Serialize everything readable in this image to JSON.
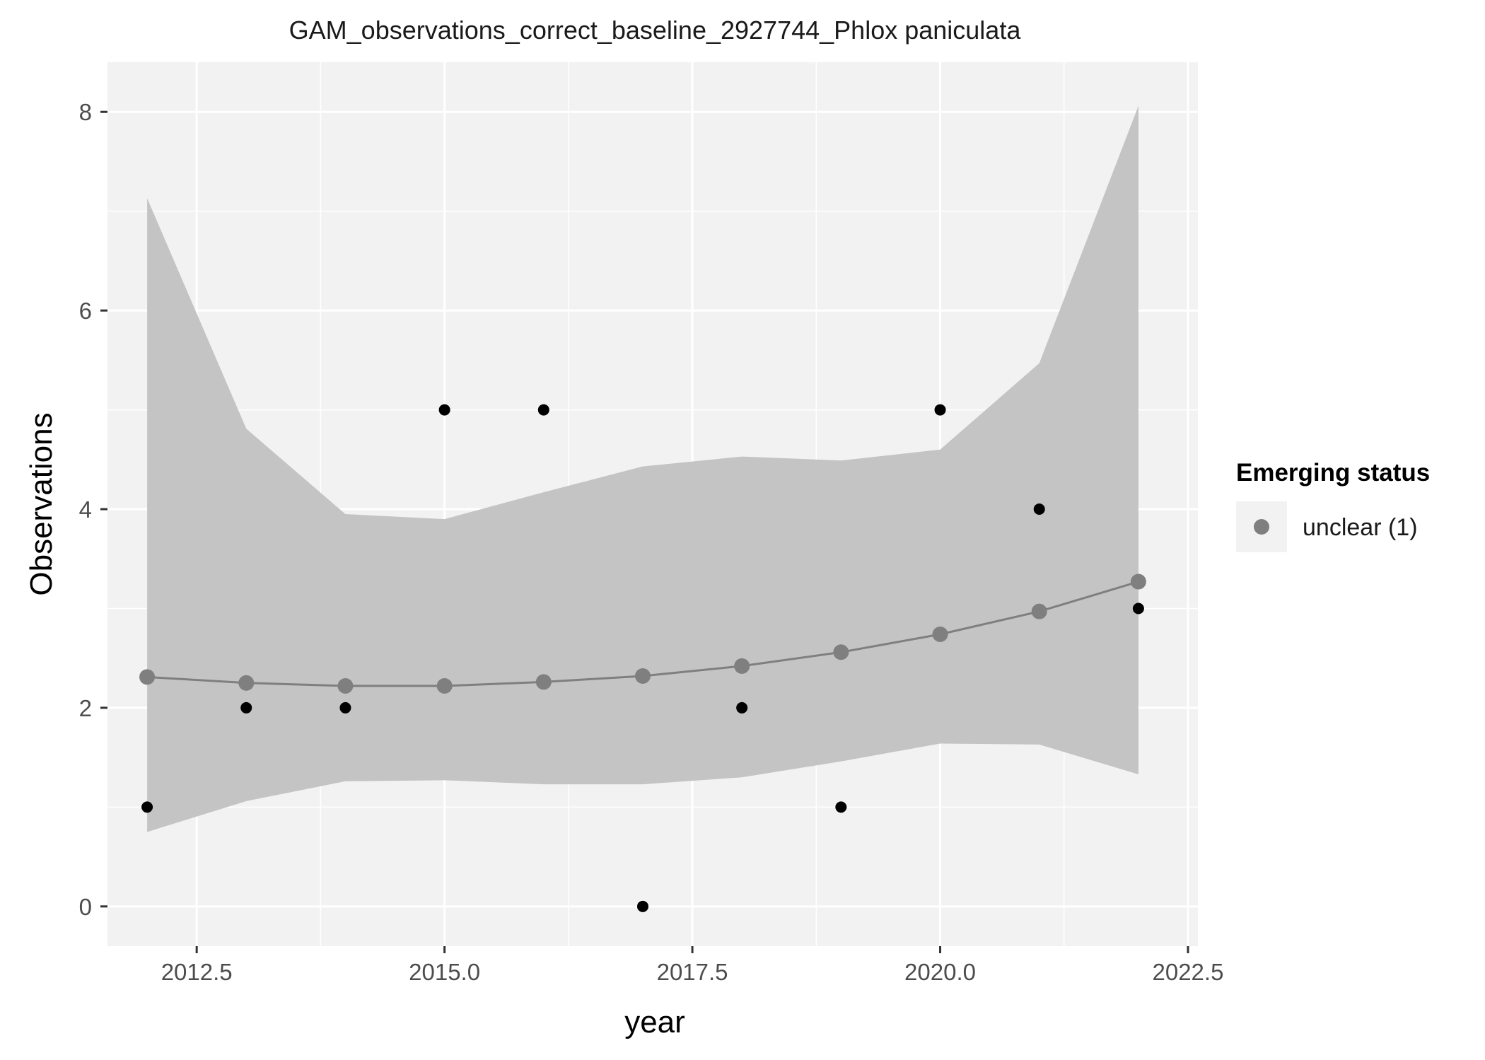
{
  "chart_data": {
    "type": "scatter",
    "title": "GAM_observations_correct_baseline_2927744_Phlox paniculata",
    "xlabel": "year",
    "ylabel": "Observations",
    "xlim": [
      2011.6,
      2022.6
    ],
    "ylim": [
      -0.4,
      8.5
    ],
    "x_ticks": [
      2012.5,
      2015.0,
      2017.5,
      2020.0,
      2022.5
    ],
    "x_tick_labels": [
      "2012.5",
      "2015.0",
      "2017.5",
      "2020.0",
      "2022.5"
    ],
    "y_ticks": [
      0,
      2,
      4,
      6,
      8
    ],
    "y_tick_labels": [
      "0",
      "2",
      "4",
      "6",
      "8"
    ],
    "grid": true,
    "legend": {
      "title": "Emerging status",
      "position": "right",
      "entries": [
        {
          "label": "unclear (1)",
          "color": "#7f7f7f"
        }
      ]
    },
    "observed": {
      "x": [
        2012,
        2013,
        2014,
        2015,
        2016,
        2017,
        2018,
        2019,
        2020,
        2021,
        2022
      ],
      "y": [
        1,
        2,
        2,
        5,
        5,
        0,
        2,
        1,
        5,
        4,
        3
      ],
      "color": "#000000"
    },
    "fit": {
      "x": [
        2012,
        2013,
        2014,
        2015,
        2016,
        2017,
        2018,
        2019,
        2020,
        2021,
        2022
      ],
      "y": [
        2.31,
        2.25,
        2.22,
        2.22,
        2.26,
        2.32,
        2.42,
        2.56,
        2.74,
        2.97,
        3.27
      ],
      "lower": [
        0.75,
        1.06,
        1.26,
        1.27,
        1.23,
        1.23,
        1.3,
        1.46,
        1.64,
        1.63,
        1.33
      ],
      "upper": [
        7.13,
        4.81,
        3.95,
        3.9,
        4.17,
        4.43,
        4.53,
        4.49,
        4.6,
        5.47,
        8.06
      ],
      "color": "#7f7f7f",
      "ribbon_color": "#c4c4c4"
    },
    "panel_color": "#f2f2f2",
    "grid_color": "#ffffff"
  }
}
